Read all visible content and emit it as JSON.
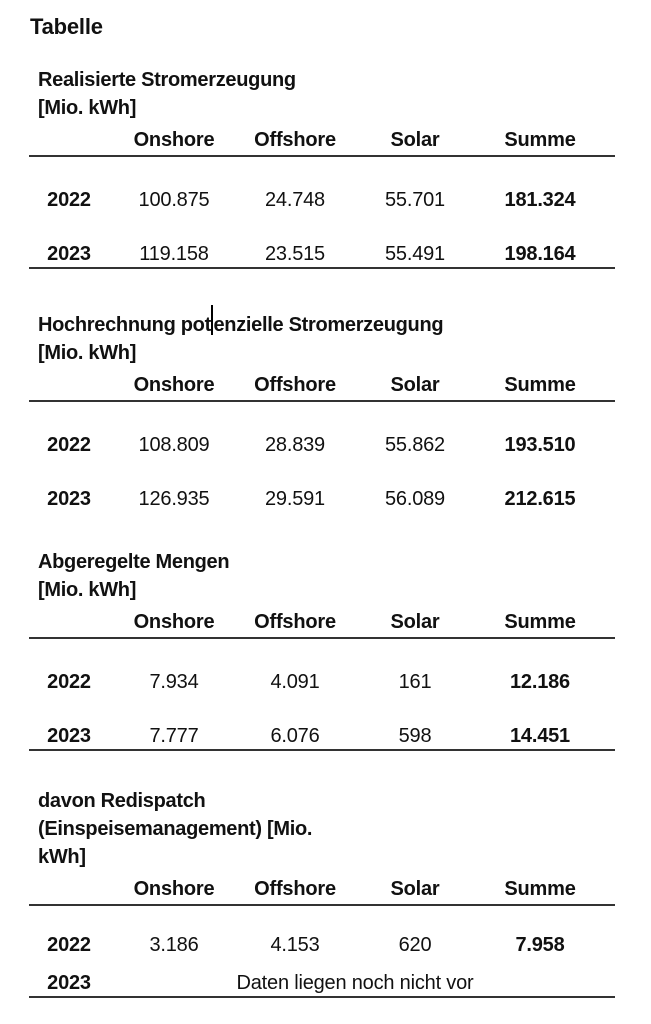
{
  "document": {
    "title": "Tabelle"
  },
  "column_headers": [
    "Onshore",
    "Offshore",
    "Solar",
    "Summe"
  ],
  "tables": [
    {
      "caption_lines": [
        "Realisierte Stromerzeugung",
        "[Mio. kWh]"
      ],
      "rows": [
        {
          "year": "2022",
          "onshore": "100.875",
          "offshore": "24.748",
          "solar": "55.701",
          "summe": "181.324"
        },
        {
          "year": "2023",
          "onshore": "119.158",
          "offshore": "23.515",
          "solar": "55.491",
          "summe": "198.164"
        }
      ]
    },
    {
      "caption_line1_parts": [
        "Hochrechnung pot",
        "enzielle Stromerzeugung"
      ],
      "caption_line2": "[Mio. kWh]",
      "rows": [
        {
          "year": "2022",
          "onshore": "108.809",
          "offshore": "28.839",
          "solar": "55.862",
          "summe": "193.510"
        },
        {
          "year": "2023",
          "onshore": "126.935",
          "offshore": "29.591",
          "solar": "56.089",
          "summe": "212.615"
        }
      ]
    },
    {
      "caption_lines": [
        "Abgeregelte Mengen",
        "[Mio. kWh]"
      ],
      "rows": [
        {
          "year": "2022",
          "onshore": "7.934",
          "offshore": "4.091",
          "solar": "161",
          "summe": "12.186"
        },
        {
          "year": "2023",
          "onshore": "7.777",
          "offshore": "6.076",
          "solar": "598",
          "summe": "14.451"
        }
      ]
    },
    {
      "caption_lines": [
        "davon Redispatch",
        "(Einspeisemanagement) [Mio.",
        "kWh]"
      ],
      "rows": [
        {
          "year": "2022",
          "onshore": "3.186",
          "offshore": "4.153",
          "solar": "620",
          "summe": "7.958"
        },
        {
          "year": "2023",
          "note": "Daten liegen noch nicht vor"
        }
      ]
    }
  ],
  "colors": {
    "text": "#111111",
    "rule": "#333333",
    "background": "#ffffff"
  }
}
